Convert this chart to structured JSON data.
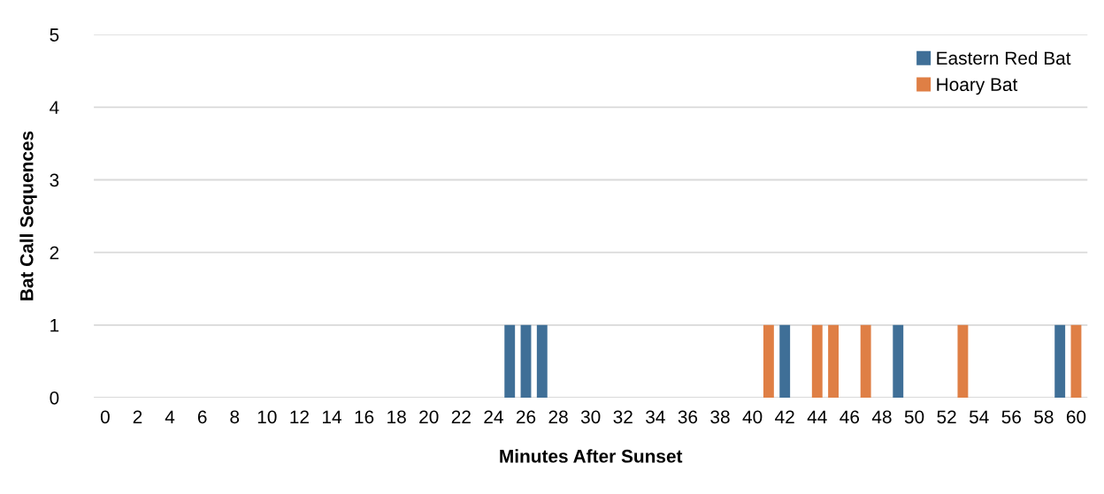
{
  "chart_data": {
    "type": "bar",
    "xlabel": "Minutes After Sunset",
    "ylabel": "Bat Call Sequences",
    "categories": [
      "0",
      null,
      "2",
      null,
      "4",
      null,
      "6",
      null,
      "8",
      null,
      "10",
      null,
      "12",
      null,
      "14",
      null,
      "16",
      null,
      "18",
      null,
      "20",
      null,
      "22",
      null,
      "24",
      null,
      "26",
      null,
      "28",
      null,
      "30",
      null,
      "32",
      null,
      "34",
      null,
      "36",
      null,
      "38",
      null,
      "40",
      null,
      "42",
      null,
      "44",
      null,
      "46",
      null,
      "48",
      null,
      "50",
      null,
      "52",
      null,
      "54",
      null,
      "56",
      null,
      "58",
      null,
      "60"
    ],
    "series": [
      {
        "name": "Eastern Red Bat",
        "color": "#3f6f97",
        "values": [
          0,
          0,
          0,
          0,
          0,
          0,
          0,
          0,
          0,
          0,
          0,
          0,
          0,
          0,
          0,
          0,
          0,
          0,
          0,
          0,
          0,
          0,
          0,
          0,
          0,
          1,
          1,
          1,
          0,
          0,
          0,
          0,
          0,
          0,
          0,
          0,
          0,
          0,
          0,
          0,
          0,
          0,
          1,
          0,
          0,
          0,
          0,
          0,
          0,
          1,
          0,
          0,
          0,
          0,
          0,
          0,
          0,
          0,
          0,
          1,
          0
        ]
      },
      {
        "name": "Hoary Bat",
        "color": "#df7f45",
        "values": [
          0,
          0,
          0,
          0,
          0,
          0,
          0,
          0,
          0,
          0,
          0,
          0,
          0,
          0,
          0,
          0,
          0,
          0,
          0,
          0,
          0,
          0,
          0,
          0,
          0,
          0,
          0,
          0,
          0,
          0,
          0,
          0,
          0,
          0,
          0,
          0,
          0,
          0,
          0,
          0,
          0,
          1,
          0,
          0,
          1,
          1,
          0,
          1,
          0,
          0,
          0,
          0,
          0,
          1,
          0,
          0,
          0,
          0,
          0,
          0,
          1
        ]
      }
    ],
    "ylim": [
      0,
      5
    ],
    "yticks": [
      0,
      1,
      2,
      3,
      4,
      5
    ],
    "grid": "y",
    "legend": "top right"
  }
}
